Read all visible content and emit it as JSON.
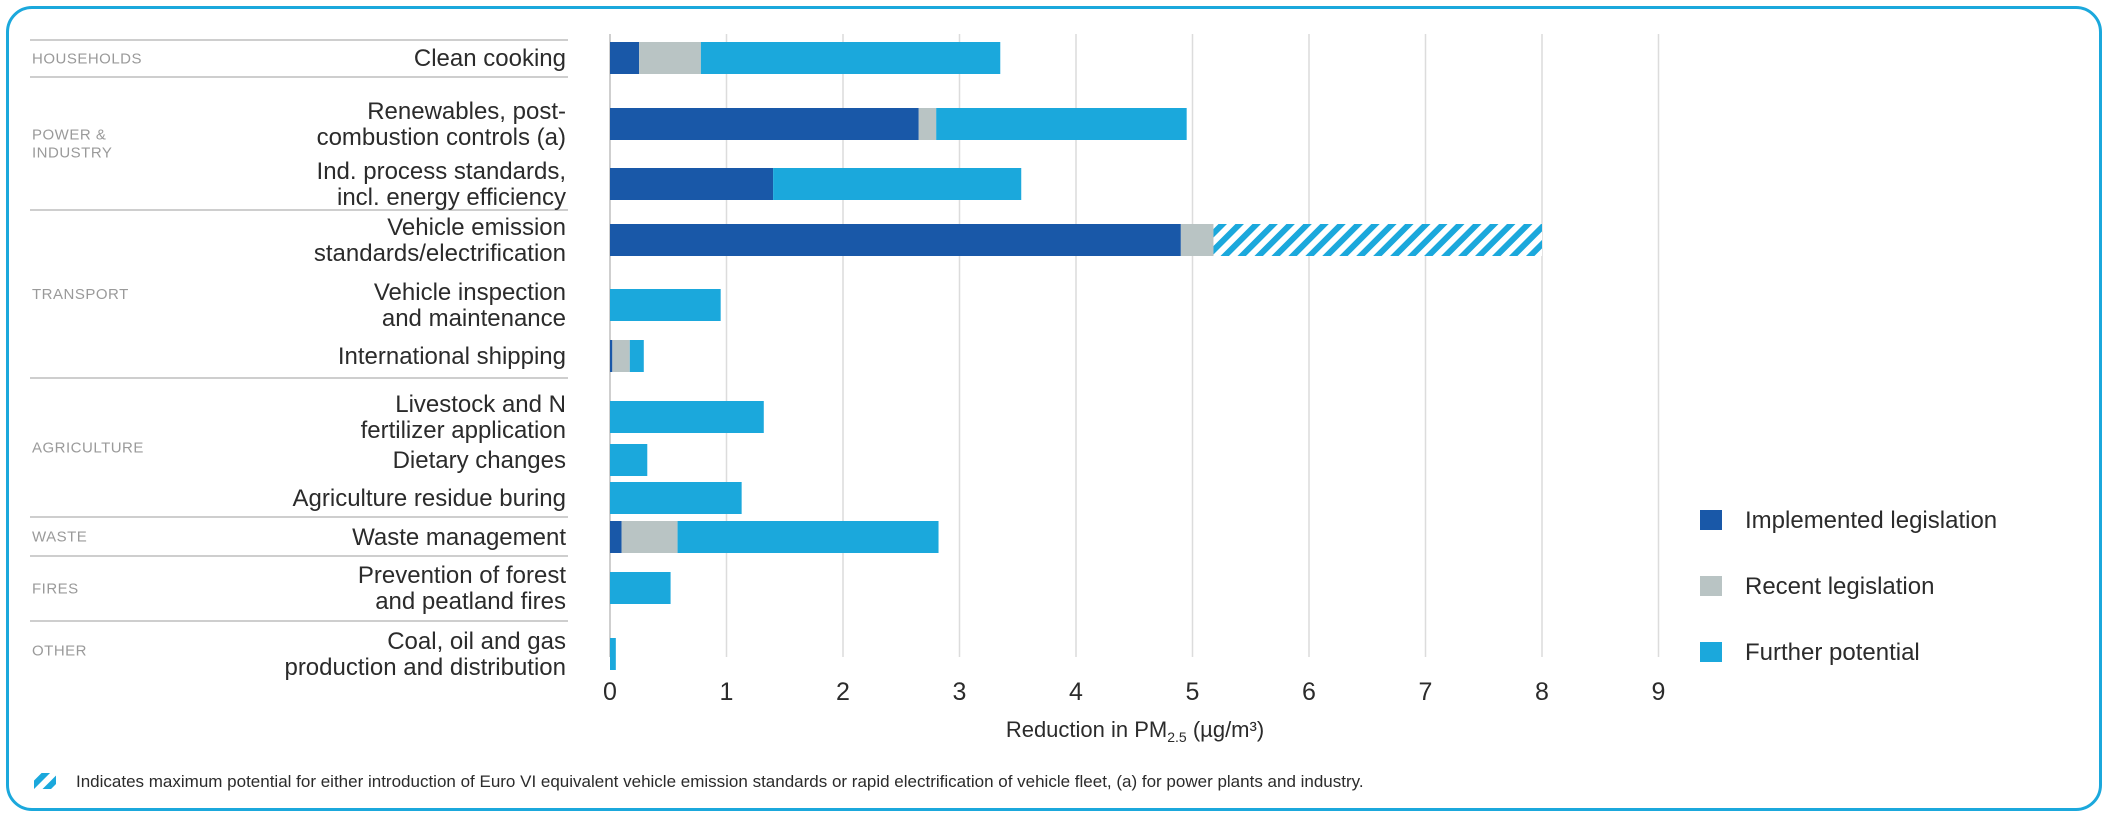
{
  "chart_data": {
    "type": "bar",
    "orientation": "horizontal",
    "stacked": true,
    "xlabel": "Reduction in PM",
    "xlabel_sub": "2.5",
    "xlabel_unit": " (µg/m³)",
    "xlim": [
      0,
      9
    ],
    "xticks": [
      0,
      1,
      2,
      3,
      4,
      5,
      6,
      7,
      8,
      9
    ],
    "grid": "vertical",
    "legend_position": "right",
    "groups": [
      {
        "name": "HOUSEHOLDS",
        "categories": [
          "Clean cooking"
        ]
      },
      {
        "name": "POWER &\nINDUSTRY",
        "categories": [
          "Renewables, post-\ncombustion controls (a)",
          "Ind. process standards,\nincl. energy efficiency"
        ]
      },
      {
        "name": "TRANSPORT",
        "categories": [
          "Vehicle emission\nstandards/electrification",
          "Vehicle inspection\nand maintenance",
          "International shipping"
        ]
      },
      {
        "name": "AGRICULTURE",
        "categories": [
          "Livestock and N\nfertilizer application",
          "Dietary changes",
          "Agriculture residue buring"
        ]
      },
      {
        "name": "WASTE",
        "categories": [
          "Waste management"
        ]
      },
      {
        "name": "FIRES",
        "categories": [
          "Prevention of forest\nand peatland fires"
        ]
      },
      {
        "name": "OTHER",
        "categories": [
          "Coal, oil and gas\nproduction and distribution"
        ]
      }
    ],
    "series": [
      {
        "name": "Implemented legislation",
        "color": "#1958a8",
        "values": [
          0.25,
          2.65,
          1.4,
          4.9,
          0,
          0.02,
          0,
          0,
          0,
          0.1,
          0,
          0
        ]
      },
      {
        "name": "Recent legislation",
        "color": "#b9c4c4",
        "values": [
          0.53,
          0.15,
          0,
          0.28,
          0,
          0.15,
          0,
          0,
          0,
          0.48,
          0,
          0
        ]
      },
      {
        "name": "Further potential",
        "color": "#1ba8dc",
        "values": [
          2.57,
          2.15,
          2.13,
          2.82,
          0.95,
          0.12,
          1.32,
          0.32,
          1.13,
          2.24,
          0.52,
          0.05
        ]
      }
    ],
    "hatched": [
      {
        "category_index": 3,
        "series_index": 2
      }
    ],
    "footnote": "Indicates maximum potential for either introduction of Euro VI equivalent vehicle emission standards or rapid electrification of vehicle fleet, (a) for power plants and industry."
  }
}
